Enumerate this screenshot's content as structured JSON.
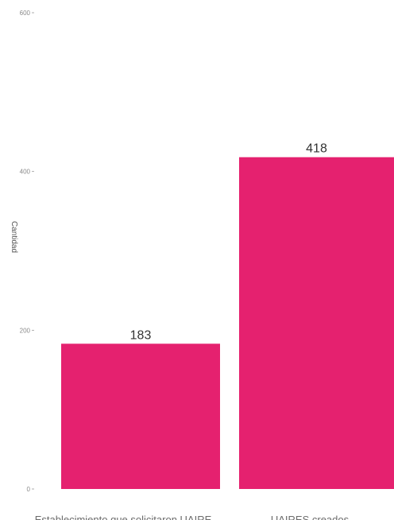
{
  "chart_data": {
    "type": "bar",
    "categories": [
      "Establecimiento que solicitaron UAIRE",
      "UAIRES creados"
    ],
    "values": [
      183,
      418
    ],
    "data_labels": [
      "183",
      "418"
    ],
    "title": "",
    "xlabel": "",
    "ylabel": "Cantidad",
    "ylim": [
      0,
      600
    ],
    "yticks": [
      0,
      200,
      400,
      600
    ],
    "grid": false,
    "bar_color": "#E5216F"
  }
}
